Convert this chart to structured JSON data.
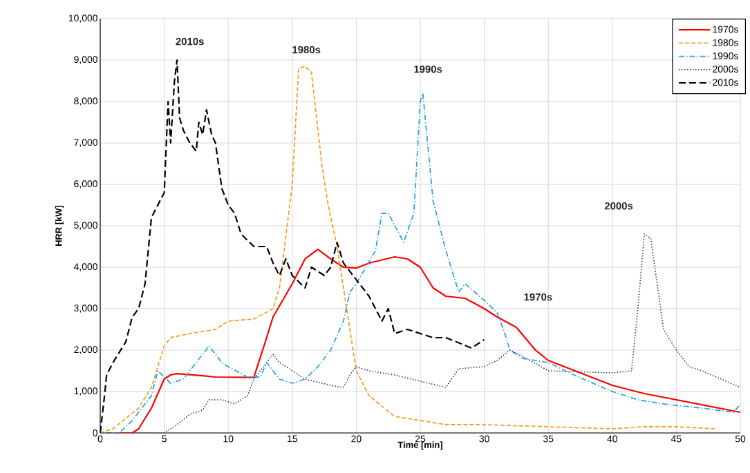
{
  "chart_data": {
    "type": "line",
    "xlabel": "Time [min]",
    "ylabel": "HRR [kW]",
    "xlim": [
      0,
      50
    ],
    "xticks": [
      0,
      5,
      10,
      15,
      20,
      25,
      30,
      35,
      40,
      45,
      50
    ],
    "ylim": [
      0,
      10000
    ],
    "yticks": [
      0,
      {
        "value": 1000,
        "label": "1,000"
      },
      {
        "value": 2000,
        "label": "2,000"
      },
      {
        "value": 3000,
        "label": "3,000"
      },
      {
        "value": 4000,
        "label": "4,000"
      },
      {
        "value": 5000,
        "label": "5,000"
      },
      {
        "value": 6000,
        "label": "6,000"
      },
      {
        "value": 7000,
        "label": "7,000"
      },
      {
        "value": 8000,
        "label": "8,000"
      },
      {
        "value": 9000,
        "label": "9,000"
      },
      {
        "value": 10000,
        "label": "10,000"
      }
    ],
    "grid": true,
    "legend": "top right",
    "marker": "none",
    "series": [
      {
        "name": "1970s",
        "color": "#ff0000",
        "line_style": "solid",
        "x": [
          0,
          2.5,
          3,
          4,
          5,
          5.5,
          6,
          8,
          9,
          12,
          13,
          13.5,
          15,
          16,
          17,
          18,
          19,
          20,
          21,
          23,
          24,
          25,
          26,
          26.5,
          27,
          28.5,
          30,
          31,
          32.5,
          34,
          35,
          40,
          42.5,
          50
        ],
        "values": [
          0,
          0,
          100,
          600,
          1300,
          1400,
          1430,
          1380,
          1350,
          1340,
          2300,
          2800,
          3600,
          4200,
          4430,
          4200,
          4000,
          3980,
          4100,
          4250,
          4200,
          4000,
          3500,
          3400,
          3300,
          3250,
          3000,
          2800,
          2550,
          2000,
          1750,
          1150,
          950,
          500
        ]
      },
      {
        "name": "1980s",
        "color": "#f5a02a",
        "line_style": "dashed",
        "x": [
          0,
          1,
          2,
          3,
          4,
          5,
          5.5,
          7,
          9,
          10,
          12,
          13.5,
          14,
          15,
          15.5,
          16,
          16.5,
          17.3,
          17.8,
          18.5,
          19,
          19.8,
          20,
          21,
          23,
          25,
          27,
          30,
          35,
          40,
          42.5,
          45,
          48
        ],
        "values": [
          0,
          100,
          350,
          600,
          1100,
          2100,
          2300,
          2400,
          2500,
          2700,
          2750,
          3000,
          3500,
          6000,
          8800,
          8850,
          8700,
          6500,
          5500,
          4500,
          3500,
          1900,
          1500,
          900,
          400,
          300,
          200,
          200,
          150,
          100,
          150,
          150,
          100
        ]
      },
      {
        "name": "1990s",
        "color": "#29a8e0",
        "line_style": "dashdot",
        "x": [
          0,
          1.5,
          2.5,
          4,
          4.5,
          5.5,
          6.5,
          8.5,
          9.5,
          10,
          11.5,
          12.5,
          13,
          13.5,
          14,
          15,
          16,
          17,
          18,
          19,
          19.5,
          20,
          21.5,
          22,
          22.5,
          23.7,
          24.5,
          25,
          25.2,
          26,
          27,
          28,
          28.5,
          30,
          31,
          31.5,
          32,
          33,
          35,
          37,
          40,
          42,
          44,
          47,
          49.5,
          50
        ],
        "values": [
          0,
          0,
          300,
          900,
          1500,
          1200,
          1300,
          2100,
          1700,
          1600,
          1350,
          1350,
          1700,
          1500,
          1300,
          1200,
          1300,
          1600,
          2000,
          2700,
          3400,
          3600,
          4400,
          5300,
          5300,
          4600,
          5300,
          8000,
          8200,
          5600,
          4400,
          3400,
          3600,
          3200,
          2900,
          2500,
          2000,
          1800,
          1700,
          1400,
          1000,
          800,
          700,
          600,
          500,
          700
        ]
      },
      {
        "name": "2000s",
        "color": "#2b2f6b",
        "line_style": "dotted",
        "x": [
          0,
          5,
          6,
          7,
          8,
          8.5,
          9.5,
          10.5,
          11.5,
          12,
          13.5,
          14,
          16,
          18,
          19,
          19.5,
          20,
          21,
          23,
          25,
          27,
          28,
          30,
          31,
          32,
          33,
          35,
          40,
          41.5,
          42,
          42.5,
          43,
          44,
          45,
          46,
          47,
          50
        ],
        "values": [
          0,
          0,
          200,
          450,
          550,
          800,
          800,
          700,
          900,
          1300,
          1900,
          1700,
          1300,
          1150,
          1100,
          1400,
          1600,
          1500,
          1400,
          1250,
          1100,
          1550,
          1600,
          1750,
          2000,
          1850,
          1500,
          1450,
          1500,
          3000,
          4800,
          4700,
          2500,
          2000,
          1600,
          1500,
          1100
        ]
      },
      {
        "name": "2010s",
        "color": "#000000",
        "line_style": "longdashed",
        "x": [
          0,
          0.3,
          0.5,
          1,
          2,
          2.5,
          3,
          3.5,
          4,
          5,
          5.3,
          5.5,
          5.8,
          6,
          6.2,
          6.5,
          7,
          7.5,
          7.7,
          8,
          8.3,
          8.7,
          9,
          9.5,
          10,
          10.5,
          11,
          12,
          13,
          13.5,
          14,
          14.5,
          15,
          16,
          16.5,
          17,
          17.5,
          18,
          18.5,
          19,
          20,
          21,
          22,
          22.5,
          23,
          24,
          25,
          26,
          27,
          29,
          30
        ],
        "values": [
          0,
          800,
          1400,
          1700,
          2200,
          2800,
          3000,
          3600,
          5200,
          5800,
          8000,
          7000,
          8500,
          9000,
          7600,
          7300,
          7000,
          6800,
          7500,
          7200,
          7800,
          7200,
          7000,
          5900,
          5500,
          5300,
          4800,
          4500,
          4500,
          4100,
          3800,
          4200,
          3800,
          3500,
          4000,
          3900,
          3800,
          4000,
          4600,
          4100,
          3700,
          3300,
          2700,
          3000,
          2400,
          2500,
          2400,
          2300,
          2300,
          2050,
          2250
        ]
      }
    ],
    "annotations": [
      "2010s",
      "1980s",
      "1990s",
      "2000s",
      "1970s"
    ]
  }
}
